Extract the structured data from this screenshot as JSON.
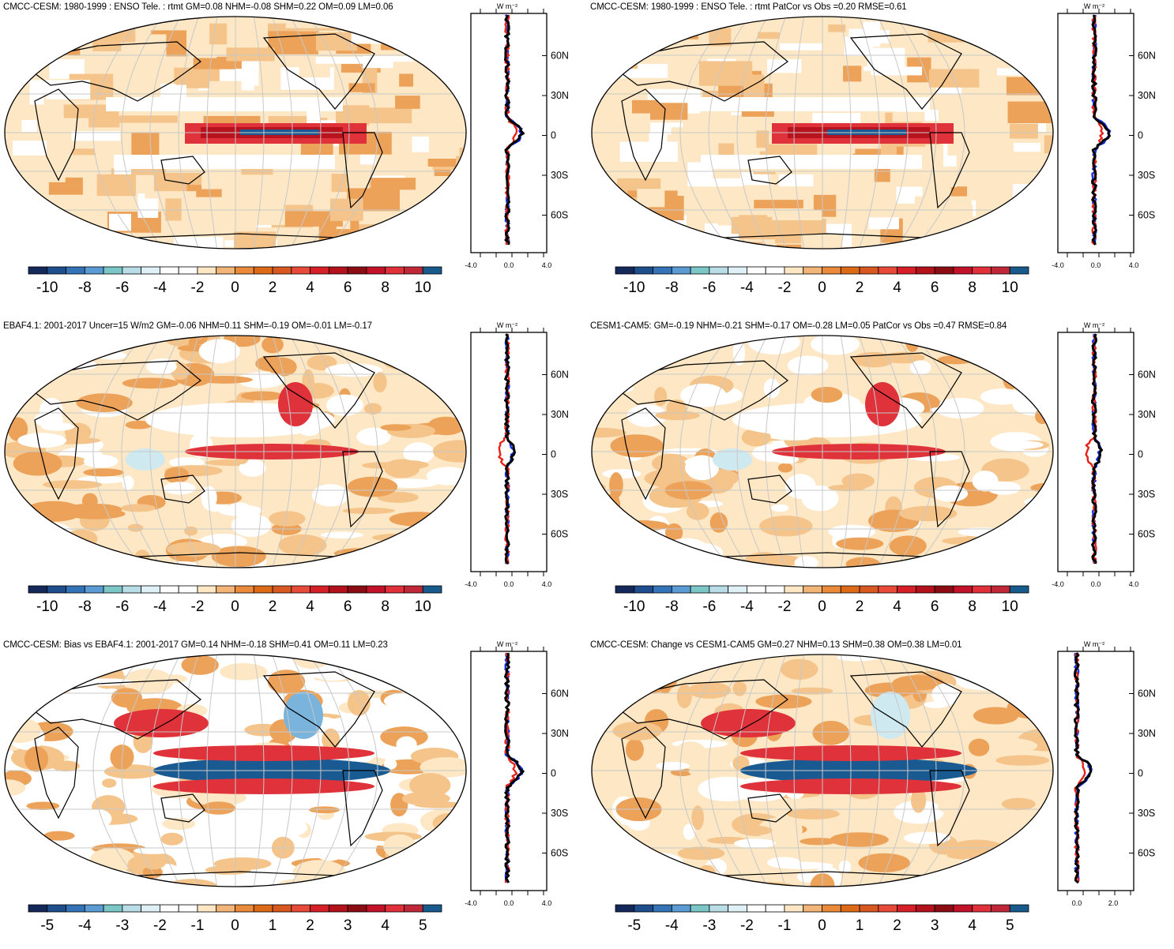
{
  "panels": [
    {
      "title": "CMCC-CESM: 1980-1999 : ENSO Tele. : rtmt GM=0.08 NHM=-0.08 SHM=0.22 OM=0.09 LM=0.06",
      "colorbar": {
        "labels": [
          "-10",
          "-8",
          "-6",
          "-4",
          "-2",
          "0",
          "2",
          "4",
          "6",
          "8",
          "10"
        ]
      },
      "profile": {
        "unit": "W m⁻²",
        "yticks": [
          "60N",
          "30N",
          "0",
          "30S",
          "60S"
        ],
        "xticks": [
          "-4.0",
          "0.0",
          "4.0"
        ]
      }
    },
    {
      "title": "CMCC-CESM: 1980-1999 : ENSO Tele. : rtmt PatCor vs Obs =0.20 RMSE=0.61",
      "colorbar": {
        "labels": [
          "-10",
          "-8",
          "-6",
          "-4",
          "-2",
          "0",
          "2",
          "4",
          "6",
          "8",
          "10"
        ]
      },
      "profile": {
        "unit": "W m⁻²",
        "yticks": [
          "60N",
          "30N",
          "0",
          "30S",
          "60S"
        ],
        "xticks": [
          "-4.0",
          "0.0",
          "4.0"
        ]
      }
    },
    {
      "title": "EBAF4.1: 2001-2017 Uncer=15 W/m2 GM=-0.06 NHM=0.11 SHM=-0.19 OM=-0.01 LM=-0.17",
      "colorbar": {
        "labels": [
          "-10",
          "-8",
          "-6",
          "-4",
          "-2",
          "0",
          "2",
          "4",
          "6",
          "8",
          "10"
        ]
      },
      "profile": {
        "unit": "W m⁻²",
        "yticks": [
          "60N",
          "30N",
          "0",
          "30S",
          "60S"
        ],
        "xticks": [
          "-4.0",
          "0.0",
          "4.0"
        ]
      }
    },
    {
      "title": "CESM1-CAM5: GM=-0.19 NHM=-0.21 SHM=-0.17 OM=-0.28 LM=0.05 PatCor vs Obs =0.47 RMSE=0.84",
      "colorbar": {
        "labels": [
          "-10",
          "-8",
          "-6",
          "-4",
          "-2",
          "0",
          "2",
          "4",
          "6",
          "8",
          "10"
        ]
      },
      "profile": {
        "unit": "W m⁻²",
        "yticks": [
          "60N",
          "30N",
          "0",
          "30S",
          "60S"
        ],
        "xticks": [
          "-4.0",
          "0.0",
          "4.0"
        ]
      }
    },
    {
      "title": "CMCC-CESM: Bias vs EBAF4.1: 2001-2017 GM=0.14 NHM=-0.18 SHM=0.41 OM=0.11 LM=0.23",
      "colorbar": {
        "labels": [
          "-5",
          "-4",
          "-3",
          "-2",
          "-1",
          "0",
          "1",
          "2",
          "3",
          "4",
          "5"
        ]
      },
      "profile": {
        "unit": "W m⁻²",
        "yticks": [
          "60N",
          "30N",
          "0",
          "30S",
          "60S"
        ],
        "xticks": [
          "-4.0",
          "0.0",
          "4.0"
        ]
      }
    },
    {
      "title": "CMCC-CESM: Change vs CESM1-CAM5 GM=0.27 NHM=0.13 SHM=0.38 OM=0.38 LM=0.01",
      "colorbar": {
        "labels": [
          "-5",
          "-4",
          "-3",
          "-2",
          "-1",
          "0",
          "1",
          "2",
          "3",
          "4",
          "5"
        ]
      },
      "profile": {
        "unit": "W m⁻²",
        "yticks": [
          "60N",
          "30N",
          "0",
          "30S",
          "60S"
        ],
        "xticks": [
          "0.0",
          "2.0"
        ]
      }
    }
  ],
  "palette": [
    "#14285a",
    "#1f4e8c",
    "#3473b8",
    "#5a9bd4",
    "#7bc6c6",
    "#b8dde6",
    "#dff1f6",
    "#ffffff",
    "#ffffff",
    "#fde7c4",
    "#f3b577",
    "#ea8a3a",
    "#dd6a17",
    "#d9581f",
    "#e84a3a",
    "#d61f26",
    "#b3121d",
    "#8c0c14",
    "#c2122a",
    "#e0303a",
    "#c0283a",
    "#185a8c"
  ],
  "line_colors": {
    "model": "#e8221a",
    "obs": "#1030e6",
    "diff": "#000000"
  }
}
